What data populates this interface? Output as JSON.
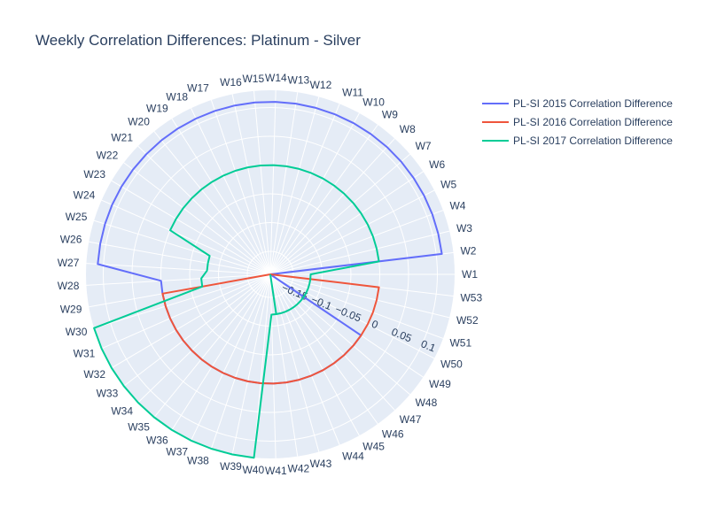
{
  "chart_data": {
    "type": "polar-line",
    "title": "Weekly Correlation Differences: Platinum - Silver",
    "angular_categories": [
      "W1",
      "W2",
      "W3",
      "W4",
      "W5",
      "W6",
      "W7",
      "W8",
      "W9",
      "W10",
      "W11",
      "W12",
      "W13",
      "W14",
      "W15",
      "W16",
      "W17",
      "W18",
      "W19",
      "W20",
      "W21",
      "W22",
      "W23",
      "W24",
      "W25",
      "W26",
      "W27",
      "W28",
      "W29",
      "W30",
      "W31",
      "W32",
      "W33",
      "W34",
      "W35",
      "W36",
      "W37",
      "W38",
      "W39",
      "W40",
      "W41",
      "W42",
      "W43",
      "W44",
      "W45",
      "W46",
      "W47",
      "W48",
      "W49",
      "W50",
      "W51",
      "W52",
      "W53"
    ],
    "radial_range": [
      -0.19,
      0.13
    ],
    "radial_ticks": [
      -0.15,
      -0.1,
      -0.05,
      0,
      0.05,
      0.1
    ],
    "radial_tick_labels": [
      "−0.15",
      "−0.1",
      "−0.05",
      "0",
      "0.05",
      "0.1"
    ],
    "legend_position": "top-right",
    "series": [
      {
        "name": "PL-SI 2015 Correlation Difference",
        "color": "#636efa",
        "points": [
          [
            "W1",
            -0.19
          ],
          [
            "W2",
            0.11
          ],
          [
            "W3",
            0.11
          ],
          [
            "W4",
            0.11
          ],
          [
            "W5",
            0.11
          ],
          [
            "W6",
            0.11
          ],
          [
            "W7",
            0.11
          ],
          [
            "W8",
            0.11
          ],
          [
            "W9",
            0.11
          ],
          [
            "W10",
            0.11
          ],
          [
            "W11",
            0.11
          ],
          [
            "W12",
            0.11
          ],
          [
            "W13",
            0.11
          ],
          [
            "W14",
            0.11
          ],
          [
            "W15",
            0.11
          ],
          [
            "W16",
            0.11
          ],
          [
            "W17",
            0.11
          ],
          [
            "W18",
            0.11
          ],
          [
            "W19",
            0.11
          ],
          [
            "W20",
            0.11
          ],
          [
            "W21",
            0.11
          ],
          [
            "W22",
            0.11
          ],
          [
            "W23",
            0.11
          ],
          [
            "W24",
            0.11
          ],
          [
            "W25",
            0.11
          ],
          [
            "W26",
            0.11
          ],
          [
            "W27",
            0.11
          ],
          [
            "W28",
            0.0
          ],
          [
            "W29",
            0.0
          ],
          [
            "W30",
            0.0
          ],
          [
            "W31",
            0.0
          ],
          [
            "W32",
            0.0
          ],
          [
            "W33",
            0.0
          ],
          [
            "W34",
            0.0
          ],
          [
            "W35",
            0.0
          ],
          [
            "W36",
            0.0
          ],
          [
            "W37",
            0.0
          ],
          [
            "W38",
            0.0
          ],
          [
            "W39",
            0.0
          ],
          [
            "W40",
            0.0
          ],
          [
            "W41",
            0.0
          ],
          [
            "W42",
            0.0
          ],
          [
            "W43",
            0.0
          ],
          [
            "W44",
            0.0
          ],
          [
            "W45",
            0.0
          ],
          [
            "W46",
            0.0
          ],
          [
            "W47",
            0.0
          ],
          [
            "W48",
            0.0
          ],
          [
            "W49",
            0.0
          ],
          [
            "W50",
            -0.19
          ]
        ]
      },
      {
        "name": "PL-SI 2016 Correlation Difference",
        "color": "#ef553b",
        "points": [
          [
            "W28",
            -0.19
          ],
          [
            "W29",
            0.0
          ],
          [
            "W30",
            0.0
          ],
          [
            "W31",
            0.0
          ],
          [
            "W32",
            0.0
          ],
          [
            "W33",
            0.0
          ],
          [
            "W34",
            0.0
          ],
          [
            "W35",
            0.0
          ],
          [
            "W36",
            0.0
          ],
          [
            "W37",
            0.0
          ],
          [
            "W38",
            0.0
          ],
          [
            "W39",
            0.0
          ],
          [
            "W40",
            0.0
          ],
          [
            "W41",
            0.0
          ],
          [
            "W42",
            0.0
          ],
          [
            "W43",
            0.0
          ],
          [
            "W44",
            0.0
          ],
          [
            "W45",
            0.0
          ],
          [
            "W46",
            0.0
          ],
          [
            "W47",
            0.0
          ],
          [
            "W48",
            0.0
          ],
          [
            "W49",
            0.0
          ],
          [
            "W50",
            0.0
          ],
          [
            "W51",
            0.0
          ],
          [
            "W52",
            0.0
          ],
          [
            "W53",
            0.0
          ],
          [
            "W1",
            -0.19
          ]
        ]
      },
      {
        "name": "PL-SI 2017 Correlation Difference",
        "color": "#00cc96",
        "points": [
          [
            "W41",
            -0.19
          ],
          [
            "W42",
            -0.12
          ],
          [
            "W43",
            -0.12
          ],
          [
            "W44",
            -0.12
          ],
          [
            "W45",
            -0.12
          ],
          [
            "W46",
            -0.12
          ],
          [
            "W47",
            -0.12
          ],
          [
            "W48",
            -0.12
          ],
          [
            "W49",
            -0.12
          ],
          [
            "W50",
            -0.12
          ],
          [
            "W51",
            -0.12
          ],
          [
            "W52",
            -0.12
          ],
          [
            "W53",
            -0.12
          ],
          [
            "W1",
            -0.12
          ],
          [
            "W2",
            0.0
          ],
          [
            "W3",
            0.0
          ],
          [
            "W4",
            0.0
          ],
          [
            "W5",
            0.0
          ],
          [
            "W6",
            0.0
          ],
          [
            "W7",
            0.0
          ],
          [
            "W8",
            0.0
          ],
          [
            "W9",
            0.0
          ],
          [
            "W10",
            0.0
          ],
          [
            "W11",
            0.0
          ],
          [
            "W12",
            0.0
          ],
          [
            "W13",
            0.0
          ],
          [
            "W14",
            0.0
          ],
          [
            "W15",
            0.0
          ],
          [
            "W16",
            0.0
          ],
          [
            "W17",
            0.0
          ],
          [
            "W18",
            0.0
          ],
          [
            "W19",
            0.0
          ],
          [
            "W20",
            0.0
          ],
          [
            "W21",
            0.0
          ],
          [
            "W22",
            0.0
          ],
          [
            "W23",
            0.0
          ],
          [
            "W24",
            0.0
          ],
          [
            "W25",
            -0.08
          ],
          [
            "W26",
            -0.08
          ],
          [
            "W27",
            -0.08
          ],
          [
            "W28",
            -0.07
          ],
          [
            "W29",
            -0.07
          ],
          [
            "W30",
            0.13
          ],
          [
            "W31",
            0.13
          ],
          [
            "W32",
            0.13
          ],
          [
            "W33",
            0.13
          ],
          [
            "W34",
            0.13
          ],
          [
            "W35",
            0.13
          ],
          [
            "W36",
            0.13
          ],
          [
            "W37",
            0.13
          ],
          [
            "W38",
            0.13
          ],
          [
            "W39",
            0.13
          ],
          [
            "W40",
            0.13
          ],
          [
            "W41",
            -0.12
          ],
          [
            "W42",
            -0.12
          ],
          [
            "W43",
            -0.12
          ],
          [
            "W44",
            -0.12
          ],
          [
            "W45",
            -0.12
          ],
          [
            "W46",
            -0.12
          ],
          [
            "W47",
            -0.12
          ],
          [
            "W48",
            -0.12
          ],
          [
            "W49",
            -0.12
          ],
          [
            "W50",
            -0.12
          ],
          [
            "W51",
            -0.12
          ],
          [
            "W52",
            -0.12
          ],
          [
            "W53",
            -0.12
          ],
          [
            "W1",
            -0.12
          ]
        ]
      }
    ]
  }
}
